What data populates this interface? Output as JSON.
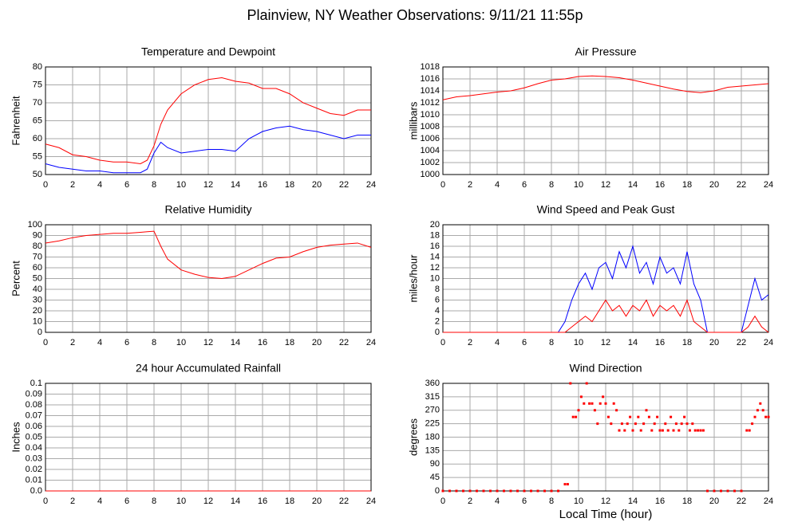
{
  "page_title": "Plainview, NY Weather Observations: 9/11/21 11:55p",
  "chart_data": [
    {
      "type": "line",
      "title": "Temperature and Dewpoint",
      "ylabel": "Fahrenheit",
      "x": [
        0,
        1,
        2,
        3,
        4,
        5,
        6,
        7,
        7.5,
        8,
        8.5,
        9,
        10,
        11,
        12,
        13,
        14,
        15,
        16,
        17,
        18,
        19,
        20,
        21,
        22,
        23,
        24
      ],
      "series": [
        {
          "color": "#ff0000",
          "values": [
            58.5,
            57.5,
            55.5,
            55,
            54,
            53.5,
            53.5,
            53,
            54,
            58,
            64,
            68,
            72.5,
            75,
            76.5,
            77,
            76,
            75.5,
            74,
            74,
            72.5,
            70,
            68.5,
            67,
            66.5,
            68,
            68
          ]
        },
        {
          "color": "#0000ff",
          "values": [
            53,
            52,
            51.5,
            51,
            51,
            50.5,
            50.5,
            50.5,
            51.5,
            56,
            59,
            57.5,
            56,
            56.5,
            57,
            57,
            56.5,
            60,
            62,
            63,
            63.5,
            62.5,
            62,
            61,
            60,
            61,
            61
          ]
        }
      ],
      "xlim": [
        0,
        24
      ],
      "xticks": [
        0,
        2,
        4,
        6,
        8,
        10,
        12,
        14,
        16,
        18,
        20,
        22,
        24
      ],
      "ylim": [
        50,
        80
      ],
      "yticks": [
        50,
        55,
        60,
        65,
        70,
        75,
        80
      ],
      "grid": true
    },
    {
      "type": "line",
      "title": "Air Pressure",
      "ylabel": "millibars",
      "x": [
        0,
        1,
        2,
        3,
        4,
        5,
        6,
        7,
        8,
        9,
        10,
        11,
        12,
        13,
        14,
        15,
        16,
        17,
        18,
        19,
        20,
        21,
        22,
        23,
        24
      ],
      "series": [
        {
          "color": "#ff0000",
          "values": [
            1012.5,
            1013,
            1013.2,
            1013.5,
            1013.8,
            1014,
            1014.5,
            1015.2,
            1015.8,
            1016,
            1016.4,
            1016.5,
            1016.4,
            1016.2,
            1015.8,
            1015.3,
            1014.8,
            1014.3,
            1013.9,
            1013.7,
            1014,
            1014.6,
            1014.8,
            1015,
            1015.2
          ]
        }
      ],
      "xlim": [
        0,
        24
      ],
      "xticks": [
        0,
        2,
        4,
        6,
        8,
        10,
        12,
        14,
        16,
        18,
        20,
        22,
        24
      ],
      "ylim": [
        1000,
        1018
      ],
      "yticks": [
        1000,
        1002,
        1004,
        1006,
        1008,
        1010,
        1012,
        1014,
        1016,
        1018
      ],
      "grid": true
    },
    {
      "type": "line",
      "title": "Relative Humidity",
      "ylabel": "Percent",
      "x": [
        0,
        1,
        2,
        3,
        4,
        5,
        6,
        7,
        7.5,
        8,
        8.5,
        9,
        10,
        11,
        12,
        13,
        14,
        15,
        16,
        17,
        18,
        19,
        20,
        21,
        22,
        23,
        24
      ],
      "series": [
        {
          "color": "#ff0000",
          "values": [
            83,
            85,
            88,
            90,
            91,
            92,
            92,
            93,
            93.5,
            94,
            80,
            68,
            58,
            54,
            51,
            50,
            52,
            58,
            64,
            69,
            70,
            75,
            79,
            81,
            82,
            83,
            79
          ]
        }
      ],
      "xlim": [
        0,
        24
      ],
      "xticks": [
        0,
        2,
        4,
        6,
        8,
        10,
        12,
        14,
        16,
        18,
        20,
        22,
        24
      ],
      "ylim": [
        0,
        100
      ],
      "yticks": [
        0,
        10,
        20,
        30,
        40,
        50,
        60,
        70,
        80,
        90,
        100
      ],
      "grid": true
    },
    {
      "type": "line",
      "title": "Wind Speed and Peak Gust",
      "ylabel": "miles/hour",
      "x": [
        0,
        0.5,
        1,
        1.5,
        2,
        2.5,
        3,
        3.5,
        4,
        4.5,
        5,
        5.5,
        6,
        6.5,
        7,
        7.5,
        8,
        8.5,
        9,
        9.5,
        10,
        10.5,
        11,
        11.5,
        12,
        12.5,
        13,
        13.5,
        14,
        14.5,
        15,
        15.5,
        16,
        16.5,
        17,
        17.5,
        18,
        18.5,
        19,
        19.5,
        20,
        20.5,
        21,
        21.5,
        22,
        22.5,
        23,
        23.5,
        24
      ],
      "series": [
        {
          "color": "#0000ff",
          "values": [
            0,
            0,
            0,
            0,
            0,
            0,
            0,
            0,
            0,
            0,
            0,
            0,
            0,
            0,
            0,
            0,
            0,
            0,
            2,
            6,
            9,
            11,
            8,
            12,
            13,
            10,
            15,
            12,
            16,
            11,
            13,
            9,
            14,
            11,
            12,
            9,
            15,
            9,
            6,
            0,
            0,
            0,
            0,
            0,
            0,
            5,
            10,
            6,
            7
          ]
        },
        {
          "color": "#ff0000",
          "values": [
            0,
            0,
            0,
            0,
            0,
            0,
            0,
            0,
            0,
            0,
            0,
            0,
            0,
            0,
            0,
            0,
            0,
            0,
            0,
            1,
            2,
            3,
            2,
            4,
            6,
            4,
            5,
            3,
            5,
            4,
            6,
            3,
            5,
            4,
            5,
            3,
            6,
            2,
            1,
            0,
            0,
            0,
            0,
            0,
            0,
            1,
            3,
            1,
            0
          ]
        }
      ],
      "xlim": [
        0,
        24
      ],
      "xticks": [
        0,
        2,
        4,
        6,
        8,
        10,
        12,
        14,
        16,
        18,
        20,
        22,
        24
      ],
      "ylim": [
        0,
        20
      ],
      "yticks": [
        0,
        2,
        4,
        6,
        8,
        10,
        12,
        14,
        16,
        18,
        20
      ],
      "grid": true
    },
    {
      "type": "line",
      "title": "24 hour Accumulated Rainfall",
      "ylabel": "Inches",
      "x": [
        0,
        24
      ],
      "series": [
        {
          "color": "#ff0000",
          "values": [
            0,
            0
          ]
        }
      ],
      "xlim": [
        0,
        24
      ],
      "xticks": [
        0,
        2,
        4,
        6,
        8,
        10,
        12,
        14,
        16,
        18,
        20,
        22,
        24
      ],
      "ylim": [
        0,
        0.1
      ],
      "yticks": [
        {
          "value": 0,
          "label": "0.0"
        },
        0.01,
        0.02,
        0.03,
        0.04,
        0.05,
        0.06,
        0.07,
        0.08,
        0.09,
        0.1
      ],
      "grid": true
    },
    {
      "type": "scatter",
      "title": "Wind Direction",
      "ylabel": "degrees",
      "xlabel": "Local Time (hour)",
      "x": [
        0,
        0.5,
        1,
        1.5,
        2,
        2.5,
        3,
        3.5,
        4,
        4.5,
        5,
        5.5,
        6,
        6.5,
        7,
        7.5,
        8,
        8.5,
        9,
        9.2,
        9.4,
        9.6,
        9.8,
        10,
        10.2,
        10.4,
        10.6,
        10.8,
        11,
        11.2,
        11.4,
        11.6,
        11.8,
        12,
        12.2,
        12.4,
        12.6,
        12.8,
        13,
        13.2,
        13.4,
        13.6,
        13.8,
        14,
        14.2,
        14.4,
        14.6,
        14.8,
        15,
        15.2,
        15.4,
        15.6,
        15.8,
        16,
        16.2,
        16.4,
        16.6,
        16.8,
        17,
        17.2,
        17.4,
        17.6,
        17.8,
        18,
        18.2,
        18.4,
        18.6,
        18.8,
        19,
        19.2,
        19.5,
        20,
        20.5,
        21,
        21.5,
        22,
        22.4,
        22.6,
        22.8,
        23,
        23.2,
        23.4,
        23.6,
        23.8,
        24
      ],
      "series": [
        {
          "color": "#ff0000",
          "values": [
            0,
            0,
            0,
            0,
            0,
            0,
            0,
            0,
            0,
            0,
            0,
            0,
            0,
            0,
            0,
            0,
            0,
            0,
            22.5,
            22.5,
            360,
            247.5,
            247.5,
            270,
            315,
            292.5,
            360,
            292.5,
            292.5,
            270,
            225,
            292.5,
            315,
            292.5,
            247.5,
            225,
            292.5,
            270,
            202.5,
            225,
            202.5,
            225,
            247.5,
            202.5,
            225,
            247.5,
            202.5,
            225,
            270,
            247.5,
            202.5,
            225,
            247.5,
            202.5,
            202.5,
            225,
            202.5,
            247.5,
            202.5,
            225,
            202.5,
            225,
            247.5,
            225,
            202.5,
            225,
            202.5,
            202.5,
            202.5,
            202.5,
            0,
            0,
            0,
            0,
            0,
            0,
            202.5,
            202.5,
            225,
            247.5,
            270,
            292.5,
            270,
            247.5,
            247.5
          ]
        }
      ],
      "xlim": [
        0,
        24
      ],
      "xticks": [
        0,
        2,
        4,
        6,
        8,
        10,
        12,
        14,
        16,
        18,
        20,
        22,
        24
      ],
      "ylim": [
        0,
        360
      ],
      "yticks": [
        0,
        45,
        90,
        135,
        180,
        225,
        270,
        315,
        360
      ],
      "grid": true
    }
  ]
}
